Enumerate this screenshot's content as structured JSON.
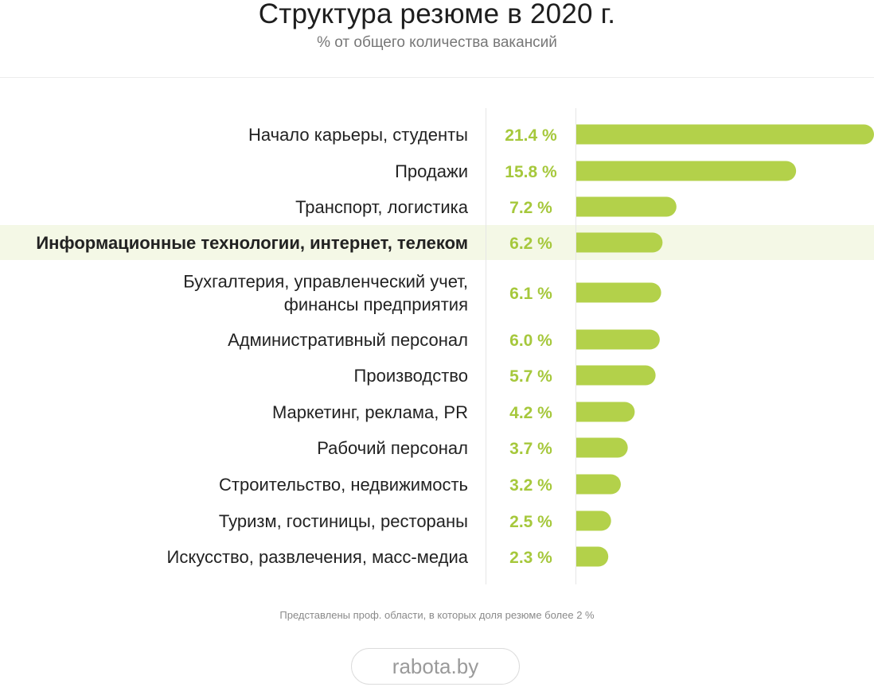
{
  "title": "Структура резюме в 2020 г.",
  "subtitle": "% от общего количества вакансий",
  "footnote": "Представлены проф. области, в которых доля резюме более 2 %",
  "brand": "rabota.by",
  "colors": {
    "bar": "#b3d14a",
    "value_text": "#a6c83c",
    "highlight_row": "#f4f8e6",
    "label_text": "#222222",
    "divider": "#e6e6e6"
  },
  "chart_data": {
    "type": "bar",
    "orientation": "horizontal",
    "unit": "%",
    "highlight_category_index": 3,
    "categories": [
      "Начало карьеры, студенты",
      "Продажи",
      "Транспорт, логистика",
      "Информационные технологии, интернет, телеком",
      "Бухгалтерия, управленческий учет,\nфинансы предприятия",
      "Административный персонал",
      "Производство",
      "Маркетинг, реклама, PR",
      "Рабочий персонал",
      "Строительство, недвижимость",
      "Туризм, гостиницы, рестораны",
      "Искусство, развлечения, масс-медиа"
    ],
    "value_labels": [
      "21.4 %",
      "15.8 %",
      "7.2 %",
      "6.2 %",
      "6.1 %",
      "6.0 %",
      "5.7 %",
      "4.2 %",
      "3.7 %",
      "3.2 %",
      "2.5 %",
      "2.3 %"
    ],
    "values": [
      21.4,
      15.8,
      7.2,
      6.2,
      6.1,
      6.0,
      5.7,
      4.2,
      3.7,
      3.2,
      2.5,
      2.3
    ]
  }
}
